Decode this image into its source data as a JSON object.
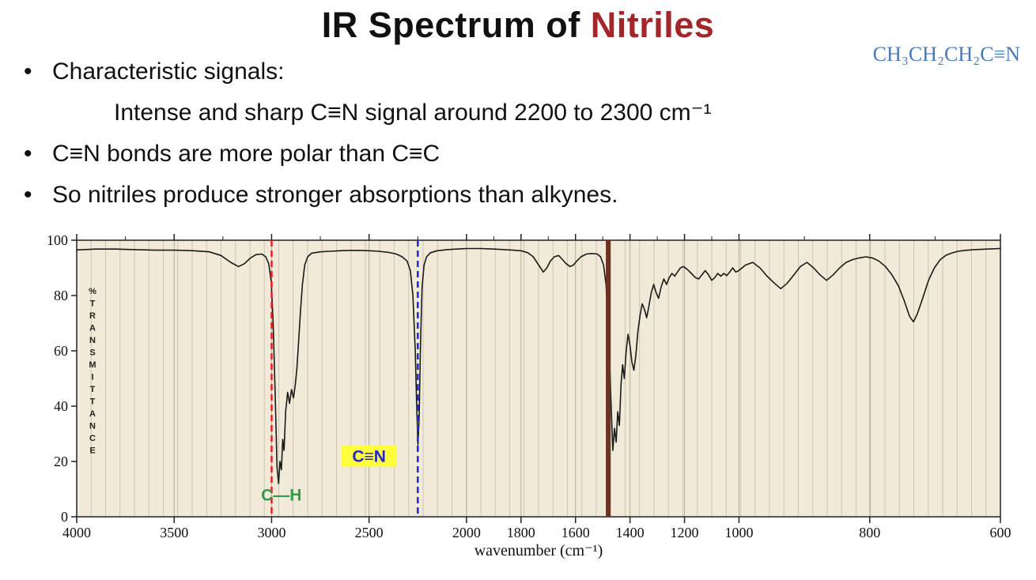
{
  "title": {
    "prefix": "IR Spectrum of ",
    "highlight": "Nitriles",
    "highlight_color": "#a3262a"
  },
  "formula": {
    "text": "CH₃CH₂CH₂C≡N",
    "color": "#4a7ab5"
  },
  "bullet_char": "•",
  "bullets": [
    {
      "text": "Characteristic signals:",
      "bullet": true,
      "indent": 0
    },
    {
      "text": "Intense and sharp C≡N signal around 2200 to 2300 cm⁻¹",
      "bullet": false,
      "indent": 1
    },
    {
      "text": "C≡N bonds are more polar than C≡C",
      "bullet": true,
      "indent": 0
    },
    {
      "text": "So nitriles produce stronger absorptions than alkynes.",
      "bullet": true,
      "indent": 0
    }
  ],
  "chart_data": {
    "type": "line",
    "title": "",
    "xlabel": "wavenumber (cm⁻¹)",
    "ylabel": "% TRANSMITTANCE",
    "x_ticks": [
      4000,
      3500,
      3000,
      2500,
      2000,
      1800,
      1600,
      1400,
      1200,
      1000,
      800,
      600
    ],
    "y_ticks": [
      0,
      20,
      40,
      60,
      80,
      100
    ],
    "ylim": [
      0,
      100
    ],
    "x_scale_segments": [
      {
        "from": 4000,
        "to": 2000,
        "frac_start": 0.0,
        "frac_end": 0.422
      },
      {
        "from": 2000,
        "to": 1000,
        "frac_start": 0.422,
        "frac_end": 0.717
      },
      {
        "from": 1000,
        "to": 600,
        "frac_start": 0.717,
        "frac_end": 1.0
      }
    ],
    "plot_bg": "#f1ead9",
    "grid_color": "#cdc4b2",
    "grid_major_color": "#b5ab96",
    "line_color": "#1a1a1a",
    "marker_lines": [
      {
        "name": "c-h-region-line",
        "wavenumber": 3000,
        "color": "#e8211d",
        "style": "dashed",
        "width": 2.5
      },
      {
        "name": "c-n-region-line",
        "wavenumber": 2250,
        "color": "#2525d8",
        "style": "dashed",
        "width": 2.5
      },
      {
        "name": "fingerprint-boundary-line",
        "wavenumber": 1480,
        "color": "#6b3321",
        "style": "solid",
        "width": 6
      }
    ],
    "annotations": [
      {
        "name": "annotation-c-h",
        "text": "C—H",
        "color": "#2e9e4f",
        "bg": "none",
        "wavenumber": 2950,
        "transmittance": 7
      },
      {
        "name": "annotation-c-n",
        "text": "C≡N",
        "color": "#2525cc",
        "bg": "#ffff3d",
        "wavenumber": 2500,
        "transmittance": 21
      }
    ],
    "series": [
      {
        "name": "butyronitrile-ir-spectrum",
        "points": [
          [
            4000,
            96.5
          ],
          [
            3900,
            96.8
          ],
          [
            3800,
            96.8
          ],
          [
            3700,
            96.6
          ],
          [
            3600,
            96.4
          ],
          [
            3500,
            96.4
          ],
          [
            3400,
            96.2
          ],
          [
            3320,
            95.8
          ],
          [
            3260,
            94.5
          ],
          [
            3210,
            92
          ],
          [
            3170,
            90.5
          ],
          [
            3140,
            91.5
          ],
          [
            3110,
            93.5
          ],
          [
            3080,
            94.8
          ],
          [
            3050,
            95
          ],
          [
            3030,
            94
          ],
          [
            3015,
            91.5
          ],
          [
            3002,
            85
          ],
          [
            2992,
            70
          ],
          [
            2982,
            45
          ],
          [
            2972,
            18
          ],
          [
            2964,
            12
          ],
          [
            2957,
            20
          ],
          [
            2950,
            17
          ],
          [
            2943,
            28
          ],
          [
            2936,
            24
          ],
          [
            2928,
            38
          ],
          [
            2918,
            45
          ],
          [
            2908,
            41
          ],
          [
            2898,
            46
          ],
          [
            2888,
            43
          ],
          [
            2878,
            48
          ],
          [
            2870,
            54
          ],
          [
            2862,
            63
          ],
          [
            2852,
            74
          ],
          [
            2842,
            84
          ],
          [
            2830,
            91
          ],
          [
            2815,
            94
          ],
          [
            2795,
            95.3
          ],
          [
            2750,
            95.8
          ],
          [
            2700,
            96
          ],
          [
            2650,
            96.2
          ],
          [
            2600,
            96.3
          ],
          [
            2550,
            96.3
          ],
          [
            2500,
            96.2
          ],
          [
            2450,
            96
          ],
          [
            2400,
            95.6
          ],
          [
            2360,
            95
          ],
          [
            2330,
            94
          ],
          [
            2305,
            92.5
          ],
          [
            2288,
            89
          ],
          [
            2275,
            80
          ],
          [
            2263,
            60
          ],
          [
            2255,
            38
          ],
          [
            2249,
            26
          ],
          [
            2243,
            36
          ],
          [
            2236,
            62
          ],
          [
            2228,
            83
          ],
          [
            2218,
            91
          ],
          [
            2205,
            94
          ],
          [
            2185,
            95.5
          ],
          [
            2150,
            96.2
          ],
          [
            2100,
            96.6
          ],
          [
            2050,
            96.8
          ],
          [
            2000,
            97
          ],
          [
            1950,
            97
          ],
          [
            1900,
            96.8
          ],
          [
            1840,
            96.5
          ],
          [
            1800,
            96.2
          ],
          [
            1775,
            95.5
          ],
          [
            1755,
            94
          ],
          [
            1735,
            91
          ],
          [
            1718,
            88.5
          ],
          [
            1705,
            90
          ],
          [
            1692,
            92.5
          ],
          [
            1678,
            94
          ],
          [
            1662,
            94.5
          ],
          [
            1648,
            93
          ],
          [
            1634,
            91.5
          ],
          [
            1620,
            90.5
          ],
          [
            1608,
            91
          ],
          [
            1595,
            92.5
          ],
          [
            1580,
            94
          ],
          [
            1560,
            95
          ],
          [
            1540,
            95.2
          ],
          [
            1520,
            95
          ],
          [
            1508,
            94
          ],
          [
            1497,
            91
          ],
          [
            1488,
            84
          ],
          [
            1478,
            65
          ],
          [
            1470,
            42
          ],
          [
            1463,
            24
          ],
          [
            1457,
            32
          ],
          [
            1451,
            27
          ],
          [
            1445,
            38
          ],
          [
            1439,
            33
          ],
          [
            1433,
            48
          ],
          [
            1427,
            55
          ],
          [
            1421,
            50
          ],
          [
            1414,
            60
          ],
          [
            1407,
            66
          ],
          [
            1400,
            62
          ],
          [
            1393,
            56
          ],
          [
            1386,
            53
          ],
          [
            1379,
            58
          ],
          [
            1371,
            67
          ],
          [
            1363,
            73
          ],
          [
            1355,
            77
          ],
          [
            1347,
            75
          ],
          [
            1339,
            72
          ],
          [
            1331,
            76
          ],
          [
            1322,
            81
          ],
          [
            1313,
            84
          ],
          [
            1304,
            81
          ],
          [
            1295,
            79
          ],
          [
            1286,
            83
          ],
          [
            1276,
            86
          ],
          [
            1266,
            84
          ],
          [
            1256,
            86.5
          ],
          [
            1246,
            88
          ],
          [
            1236,
            87
          ],
          [
            1226,
            88.5
          ],
          [
            1215,
            90
          ],
          [
            1204,
            90.5
          ],
          [
            1190,
            89.5
          ],
          [
            1175,
            88
          ],
          [
            1160,
            86.5
          ],
          [
            1148,
            86
          ],
          [
            1136,
            87.5
          ],
          [
            1124,
            89
          ],
          [
            1112,
            87.5
          ],
          [
            1100,
            85.5
          ],
          [
            1089,
            86.5
          ],
          [
            1078,
            88
          ],
          [
            1067,
            87
          ],
          [
            1056,
            88
          ],
          [
            1045,
            87.2
          ],
          [
            1034,
            88.5
          ],
          [
            1023,
            90
          ],
          [
            1012,
            88.5
          ],
          [
            1001,
            89
          ],
          [
            990,
            91
          ],
          [
            979,
            92
          ],
          [
            968,
            90
          ],
          [
            957,
            87
          ],
          [
            946,
            84.5
          ],
          [
            936,
            82.5
          ],
          [
            926,
            84.5
          ],
          [
            916,
            87.5
          ],
          [
            906,
            90.5
          ],
          [
            896,
            92
          ],
          [
            886,
            90
          ],
          [
            876,
            87.5
          ],
          [
            866,
            85.5
          ],
          [
            856,
            87.5
          ],
          [
            846,
            90
          ],
          [
            836,
            92
          ],
          [
            826,
            93
          ],
          [
            816,
            93.6
          ],
          [
            806,
            94
          ],
          [
            796,
            93.6
          ],
          [
            786,
            92.5
          ],
          [
            776,
            90.5
          ],
          [
            766,
            87.5
          ],
          [
            756,
            83.5
          ],
          [
            747,
            78
          ],
          [
            739,
            72.5
          ],
          [
            733,
            70.5
          ],
          [
            727,
            73.5
          ],
          [
            719,
            79
          ],
          [
            710,
            85.5
          ],
          [
            701,
            90
          ],
          [
            692,
            93
          ],
          [
            683,
            94.6
          ],
          [
            674,
            95.4
          ],
          [
            665,
            96
          ],
          [
            655,
            96.3
          ],
          [
            640,
            96.6
          ],
          [
            620,
            96.8
          ],
          [
            600,
            97
          ]
        ]
      }
    ]
  }
}
